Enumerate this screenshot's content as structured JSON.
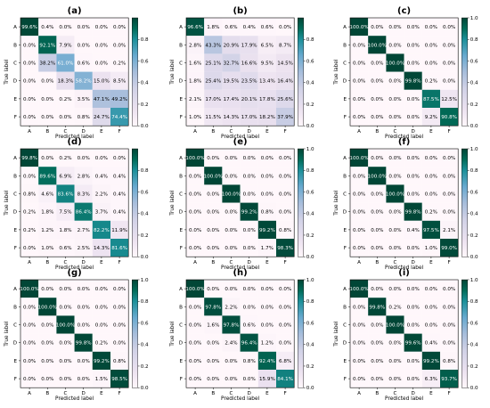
{
  "chart_data": [
    {
      "type": "heatmap",
      "title": "(a)",
      "xlabel": "Predicted label",
      "ylabel": "True label",
      "x": [
        "A",
        "B",
        "C",
        "D",
        "E",
        "F"
      ],
      "y": [
        "A",
        "B",
        "C",
        "D",
        "E",
        "F"
      ],
      "values": [
        [
          99.6,
          0.4,
          0.0,
          0.0,
          0.0,
          0.0
        ],
        [
          0.0,
          92.1,
          7.9,
          0.0,
          0.0,
          0.0
        ],
        [
          0.0,
          38.2,
          61.0,
          0.6,
          0.0,
          0.2
        ],
        [
          0.0,
          0.0,
          18.3,
          58.2,
          15.0,
          8.5
        ],
        [
          0.0,
          0.0,
          0.2,
          3.5,
          47.1,
          49.2
        ],
        [
          0.0,
          0.0,
          0.0,
          0.8,
          24.7,
          74.4
        ]
      ],
      "colorbar_ticks": [
        "0.0",
        "0.2",
        "0.4",
        "0.6",
        "0.8"
      ],
      "colorbar_max": 1.0
    },
    {
      "type": "heatmap",
      "title": "(b)",
      "xlabel": "Predicted label",
      "ylabel": "True label",
      "x": [
        "A",
        "B",
        "C",
        "D",
        "E",
        "F"
      ],
      "y": [
        "A",
        "B",
        "C",
        "D",
        "E",
        "F"
      ],
      "values": [
        [
          96.6,
          1.8,
          0.6,
          0.4,
          0.6,
          0.0
        ],
        [
          2.8,
          43.3,
          20.9,
          17.9,
          6.5,
          8.7
        ],
        [
          1.6,
          25.1,
          32.7,
          16.6,
          9.5,
          14.5
        ],
        [
          1.8,
          25.4,
          19.5,
          23.5,
          13.4,
          16.4
        ],
        [
          2.1,
          17.0,
          17.4,
          20.1,
          17.8,
          25.6
        ],
        [
          1.0,
          11.5,
          14.3,
          17.0,
          18.2,
          37.9
        ]
      ],
      "colorbar_ticks": [
        "0.0",
        "0.2",
        "0.4",
        "0.6",
        "0.8"
      ],
      "colorbar_max": 1.0
    },
    {
      "type": "heatmap",
      "title": "(c)",
      "xlabel": "Predicted label",
      "ylabel": "True label",
      "x": [
        "A",
        "B",
        "C",
        "D",
        "E",
        "F"
      ],
      "y": [
        "A",
        "B",
        "C",
        "D",
        "E",
        "F"
      ],
      "values": [
        [
          100.0,
          0.0,
          0.0,
          0.0,
          0.0,
          0.0
        ],
        [
          0.0,
          100.0,
          0.0,
          0.0,
          0.0,
          0.0
        ],
        [
          0.0,
          0.0,
          100.0,
          0.0,
          0.0,
          0.0
        ],
        [
          0.0,
          0.0,
          0.0,
          99.8,
          0.2,
          0.0
        ],
        [
          0.0,
          0.0,
          0.0,
          0.0,
          87.5,
          12.5
        ],
        [
          0.0,
          0.0,
          0.0,
          0.0,
          9.2,
          90.8
        ]
      ],
      "colorbar_ticks": [
        "0.0",
        "0.2",
        "0.4",
        "0.6",
        "0.8",
        "1.0"
      ],
      "colorbar_max": 1.0
    },
    {
      "type": "heatmap",
      "title": "(d)",
      "xlabel": "Predicted label",
      "ylabel": "True label",
      "x": [
        "A",
        "B",
        "C",
        "D",
        "E",
        "F"
      ],
      "y": [
        "A",
        "B",
        "C",
        "D",
        "E",
        "F"
      ],
      "values": [
        [
          99.8,
          0.0,
          0.2,
          0.0,
          0.0,
          0.0
        ],
        [
          0.0,
          89.6,
          6.9,
          2.8,
          0.4,
          0.4
        ],
        [
          0.8,
          4.6,
          83.6,
          8.3,
          2.2,
          0.4
        ],
        [
          0.2,
          1.8,
          7.5,
          86.4,
          3.7,
          0.4
        ],
        [
          0.2,
          1.2,
          1.8,
          2.7,
          82.2,
          11.9
        ],
        [
          0.0,
          1.0,
          0.6,
          2.5,
          14.3,
          81.6
        ]
      ],
      "colorbar_ticks": [
        "0.0",
        "0.2",
        "0.4",
        "0.6",
        "0.8"
      ],
      "colorbar_max": 1.0
    },
    {
      "type": "heatmap",
      "title": "(e)",
      "xlabel": "Predicted label",
      "ylabel": "True label",
      "x": [
        "A",
        "B",
        "C",
        "D",
        "E",
        "F"
      ],
      "y": [
        "A",
        "B",
        "C",
        "D",
        "E",
        "F"
      ],
      "values": [
        [
          100.0,
          0.0,
          0.0,
          0.0,
          0.0,
          0.0
        ],
        [
          0.0,
          100.0,
          0.0,
          0.0,
          0.0,
          0.0
        ],
        [
          0.0,
          0.0,
          100.0,
          0.0,
          0.0,
          0.0
        ],
        [
          0.0,
          0.0,
          0.0,
          99.2,
          0.8,
          0.0
        ],
        [
          0.0,
          0.0,
          0.0,
          0.0,
          99.2,
          0.8
        ],
        [
          0.0,
          0.0,
          0.0,
          0.0,
          1.7,
          98.3
        ]
      ],
      "colorbar_ticks": [
        "0.0",
        "0.2",
        "0.4",
        "0.6",
        "0.8",
        "1.0"
      ],
      "colorbar_max": 1.0
    },
    {
      "type": "heatmap",
      "title": "(f)",
      "xlabel": "Predicted label",
      "ylabel": "True label",
      "x": [
        "A",
        "B",
        "C",
        "D",
        "E",
        "F"
      ],
      "y": [
        "A",
        "B",
        "C",
        "D",
        "E",
        "F"
      ],
      "values": [
        [
          100.0,
          0.0,
          0.0,
          0.0,
          0.0,
          0.0
        ],
        [
          0.0,
          100.0,
          0.0,
          0.0,
          0.0,
          0.0
        ],
        [
          0.0,
          0.0,
          100.0,
          0.0,
          0.0,
          0.0
        ],
        [
          0.0,
          0.0,
          0.0,
          99.8,
          0.2,
          0.0
        ],
        [
          0.0,
          0.0,
          0.0,
          0.4,
          97.5,
          2.1
        ],
        [
          0.0,
          0.0,
          0.0,
          0.0,
          1.0,
          99.0
        ]
      ],
      "colorbar_ticks": [
        "0.0",
        "0.2",
        "0.4",
        "0.6",
        "0.8",
        "1.0"
      ],
      "colorbar_max": 1.0
    },
    {
      "type": "heatmap",
      "title": "(g)",
      "xlabel": "Predicted label",
      "ylabel": "True label",
      "x": [
        "A",
        "B",
        "C",
        "D",
        "E",
        "F"
      ],
      "y": [
        "A",
        "B",
        "C",
        "D",
        "E",
        "F"
      ],
      "values": [
        [
          100.0,
          0.0,
          0.0,
          0.0,
          0.0,
          0.0
        ],
        [
          0.0,
          100.0,
          0.0,
          0.0,
          0.0,
          0.0
        ],
        [
          0.0,
          0.0,
          100.0,
          0.0,
          0.0,
          0.0
        ],
        [
          0.0,
          0.0,
          0.0,
          99.8,
          0.2,
          0.0
        ],
        [
          0.0,
          0.0,
          0.0,
          0.0,
          99.2,
          0.8
        ],
        [
          0.0,
          0.0,
          0.0,
          0.0,
          1.5,
          98.5
        ]
      ],
      "colorbar_ticks": [
        "0.0",
        "0.2",
        "0.4",
        "0.6",
        "0.8",
        "1.0"
      ],
      "colorbar_max": 1.0
    },
    {
      "type": "heatmap",
      "title": "(h)",
      "xlabel": "Predicted label",
      "ylabel": "True label",
      "x": [
        "A",
        "B",
        "C",
        "D",
        "E",
        "F"
      ],
      "y": [
        "A",
        "B",
        "C",
        "D",
        "E",
        "F"
      ],
      "values": [
        [
          100.0,
          0.0,
          0.0,
          0.0,
          0.0,
          0.0
        ],
        [
          0.0,
          97.8,
          2.2,
          0.0,
          0.0,
          0.0
        ],
        [
          0.0,
          1.6,
          97.8,
          0.6,
          0.0,
          0.0
        ],
        [
          0.0,
          0.0,
          2.4,
          96.4,
          1.2,
          0.0
        ],
        [
          0.0,
          0.0,
          0.0,
          0.8,
          92.4,
          6.8
        ],
        [
          0.0,
          0.0,
          0.0,
          0.0,
          15.9,
          84.1
        ]
      ],
      "colorbar_ticks": [
        "0.0",
        "0.2",
        "0.4",
        "0.6",
        "0.8",
        "1.0"
      ],
      "colorbar_max": 1.0
    },
    {
      "type": "heatmap",
      "title": "(i)",
      "xlabel": "Predicted label",
      "ylabel": "True label",
      "x": [
        "A",
        "B",
        "C",
        "D",
        "E",
        "F"
      ],
      "y": [
        "A",
        "B",
        "C",
        "D",
        "E",
        "F"
      ],
      "values": [
        [
          100.0,
          0.0,
          0.0,
          0.0,
          0.0,
          0.0
        ],
        [
          0.0,
          99.8,
          0.2,
          0.0,
          0.0,
          0.0
        ],
        [
          0.0,
          0.0,
          100.0,
          0.0,
          0.0,
          0.0
        ],
        [
          0.0,
          0.0,
          0.0,
          99.6,
          0.4,
          0.0
        ],
        [
          0.0,
          0.0,
          0.0,
          0.0,
          99.2,
          0.8
        ],
        [
          0.0,
          0.0,
          0.0,
          0.0,
          6.3,
          93.7
        ]
      ],
      "colorbar_ticks": [
        "0.0",
        "0.2",
        "0.4",
        "0.6",
        "0.8",
        "1.0"
      ],
      "colorbar_max": 1.0
    }
  ],
  "colors": {
    "low": "#fff7fb",
    "mid": "#a6bddb",
    "high": "#014636",
    "text_dark": "#000000",
    "text_light": "#ffffff"
  }
}
